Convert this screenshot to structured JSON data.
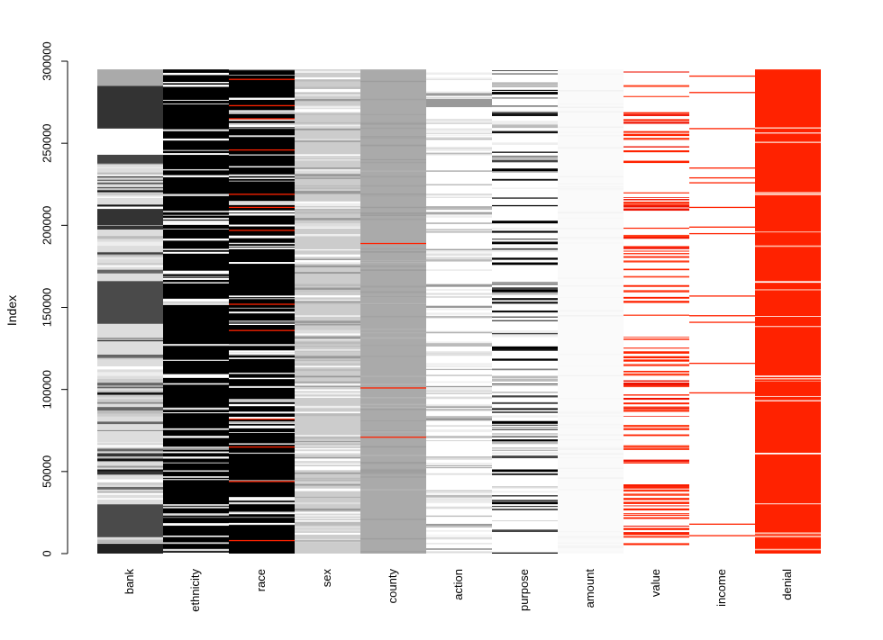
{
  "chart_data": {
    "type": "heatmap",
    "title": "",
    "xlabel": "",
    "ylabel": "Index",
    "ylim": [
      0,
      300000
    ],
    "yticks": [
      "0",
      "50000",
      "100000",
      "150000",
      "200000",
      "250000",
      "300000"
    ],
    "ytick_values": [
      0,
      50000,
      100000,
      150000,
      200000,
      250000,
      300000
    ],
    "index_max": 295000,
    "missing_color": "#ff2200",
    "columns": [
      {
        "name": "bank",
        "base": "#dddddd",
        "pattern": "mixed-gray",
        "blocks": [
          [
            0,
            6000,
            "#222222"
          ],
          [
            10000,
            30000,
            "#4a4a4a"
          ],
          [
            140000,
            166000,
            "#4a4a4a"
          ],
          [
            200000,
            210000,
            "#333333"
          ],
          [
            238000,
            243000,
            "#444444"
          ],
          [
            243000,
            259000,
            "#ffffff"
          ],
          [
            259000,
            285000,
            "#333333"
          ],
          [
            285000,
            295000,
            "#aaaaaa"
          ]
        ],
        "missing": []
      },
      {
        "name": "ethnicity",
        "base": "#000000",
        "pattern": "dark-white-lines",
        "blocks": [],
        "missing": []
      },
      {
        "name": "race",
        "base": "#000000",
        "pattern": "dark-white-lines",
        "blocks": [],
        "missing": [
          8000,
          44000,
          65000,
          82000,
          136000,
          152000,
          197000,
          211000,
          219000,
          246000,
          265000,
          273000,
          289000
        ]
      },
      {
        "name": "sex",
        "base": "#cccccc",
        "pattern": "light-gray-lines",
        "blocks": [],
        "missing": []
      },
      {
        "name": "county",
        "base": "#aaaaaa",
        "pattern": "solid-gray",
        "blocks": [],
        "missing": [
          71000,
          101000,
          189000
        ]
      },
      {
        "name": "action",
        "base": "#ffffff",
        "pattern": "light-gray-lines",
        "blocks": [
          [
            272000,
            277000,
            "#999999"
          ]
        ],
        "missing": []
      },
      {
        "name": "purpose",
        "base": "#ffffff",
        "pattern": "black-lines",
        "blocks": [],
        "missing": []
      },
      {
        "name": "amount",
        "base": "#fafafa",
        "pattern": "near-white",
        "blocks": [],
        "missing": []
      },
      {
        "name": "value",
        "base": "#ffffff",
        "pattern": "red-lines",
        "blocks": [],
        "missing": []
      },
      {
        "name": "income",
        "base": "#ffffff",
        "pattern": "sparse-red",
        "blocks": [],
        "missing": [
          11000,
          18000,
          98000,
          116000,
          141000,
          145000,
          157000,
          195000,
          199000,
          211000,
          226000,
          229000,
          235000,
          259000,
          281000,
          291000
        ]
      },
      {
        "name": "denial",
        "base": "#ff2200",
        "pattern": "white-lines-on-red",
        "blocks": [],
        "missing": []
      }
    ]
  }
}
